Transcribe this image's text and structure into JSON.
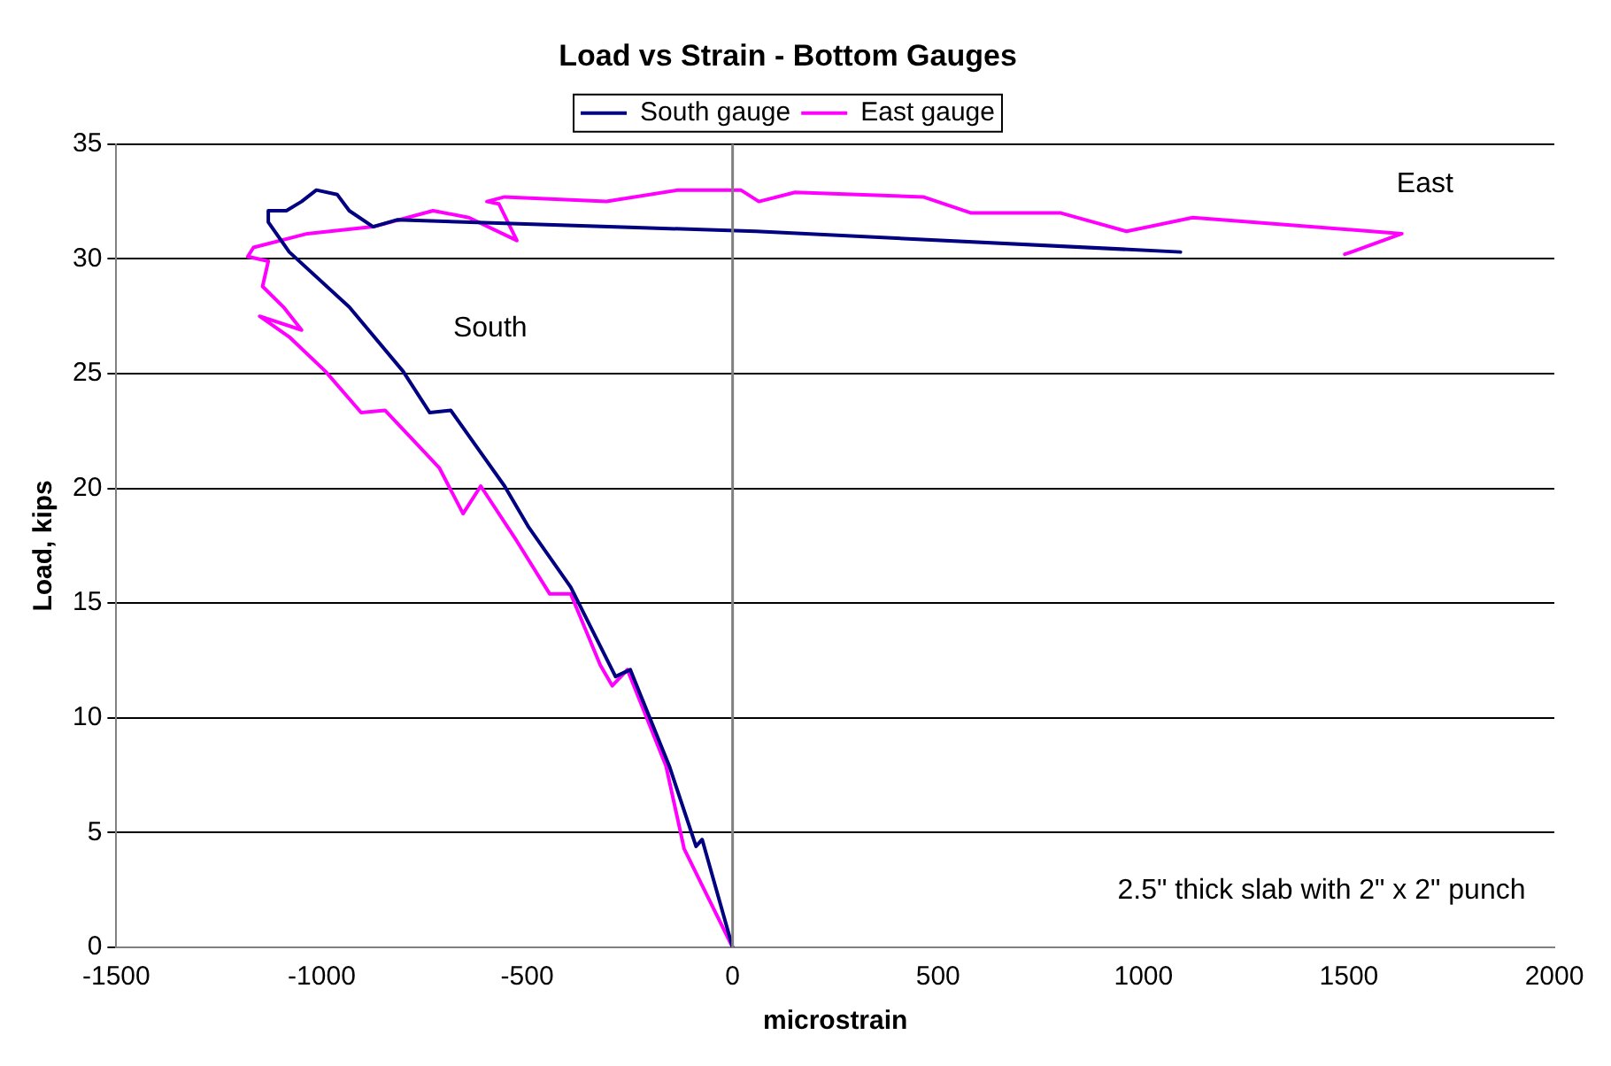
{
  "chart_data": {
    "type": "line",
    "title": "Load vs Strain - Bottom Gauges",
    "xlabel": "microstrain",
    "ylabel": "Load, kips",
    "xlim": [
      -1500,
      2000
    ],
    "xticks": [
      -1500,
      -1000,
      -500,
      0,
      500,
      1000,
      1500,
      2000
    ],
    "ylim": [
      0,
      35
    ],
    "yticks": [
      0,
      5,
      10,
      15,
      20,
      25,
      30,
      35
    ],
    "grid": "y",
    "legend": "top",
    "marker": "none",
    "line_style": "solid",
    "ref_lines": [
      {
        "axis": "x",
        "value": 0,
        "color": "#808080"
      }
    ],
    "series": [
      {
        "name": "South gauge",
        "color": "#000080",
        "x": [
          0,
          -74,
          -89,
          -154,
          -249,
          -285,
          -394,
          -453,
          -496,
          -555,
          -686,
          -737,
          -802,
          -933,
          -1079,
          -1130,
          -1130,
          -1086,
          -1049,
          -1013,
          -962,
          -933,
          -875,
          -817,
          57,
          1090
        ],
        "values": [
          0,
          4.7,
          4.4,
          7.9,
          12.1,
          11.8,
          15.7,
          17.2,
          18.3,
          20.1,
          23.4,
          23.3,
          25.1,
          27.9,
          30.3,
          31.6,
          32.1,
          32.1,
          32.5,
          33.0,
          32.8,
          32.1,
          31.4,
          31.7,
          31.2,
          30.3
        ]
      },
      {
        "name": "East gauge",
        "color": "#ff00ff",
        "x": [
          0,
          -118,
          -162,
          -256,
          -293,
          -322,
          -394,
          -445,
          -525,
          -613,
          -656,
          -714,
          -846,
          -904,
          -991,
          -1079,
          -1151,
          -1049,
          -1093,
          -1144,
          -1130,
          -1180,
          -1166,
          -1035,
          -875,
          -729,
          -642,
          -525,
          -569,
          -598,
          -555,
          -307,
          -132,
          20,
          64,
          152,
          464,
          581,
          799,
          959,
          1120,
          1629,
          1490
        ],
        "values": [
          0,
          4.3,
          7.9,
          12.1,
          11.4,
          12.3,
          15.4,
          15.4,
          17.7,
          20.1,
          18.9,
          20.9,
          23.4,
          23.3,
          25.1,
          26.6,
          27.5,
          26.9,
          27.9,
          28.8,
          29.9,
          30.1,
          30.5,
          31.1,
          31.4,
          32.1,
          31.8,
          30.8,
          32.4,
          32.5,
          32.7,
          32.5,
          33.0,
          33.0,
          32.5,
          32.9,
          32.7,
          32.0,
          32.0,
          31.2,
          31.8,
          31.1,
          30.2
        ]
      }
    ],
    "annotations": [
      "South",
      "East",
      "2.5\" thick slab with 2\" x 2\" punch"
    ]
  }
}
